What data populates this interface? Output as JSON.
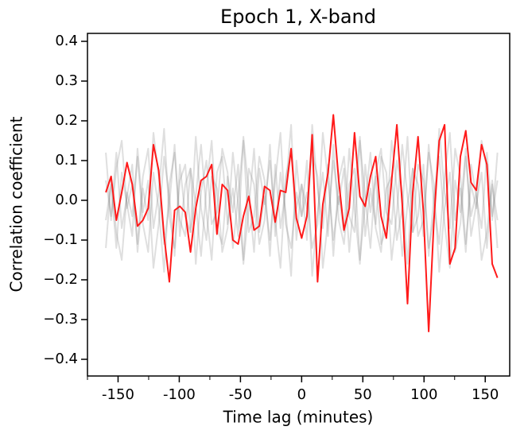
{
  "chart_data": {
    "type": "line",
    "title": "Epoch 1, X-band",
    "xlabel": "Time lag (minutes)",
    "ylabel": "Correlation coefficient",
    "x": [
      -160,
      -155.7,
      -151.4,
      -147.0,
      -142.7,
      -138.4,
      -134.1,
      -129.7,
      -125.4,
      -121.1,
      -116.8,
      -112.4,
      -108.1,
      -103.8,
      -99.5,
      -95.1,
      -90.8,
      -86.5,
      -82.2,
      -77.8,
      -73.5,
      -69.2,
      -64.9,
      -60.5,
      -56.2,
      -51.9,
      -47.6,
      -43.2,
      -38.9,
      -34.6,
      -30.3,
      -25.9,
      -21.6,
      -17.3,
      -13.0,
      -8.6,
      -4.3,
      0,
      4.3,
      8.6,
      13.0,
      17.3,
      21.6,
      25.9,
      30.3,
      34.6,
      38.9,
      43.2,
      47.6,
      51.9,
      56.2,
      60.5,
      64.9,
      69.2,
      73.5,
      77.8,
      82.2,
      86.5,
      90.8,
      95.1,
      99.5,
      103.8,
      108.1,
      112.4,
      116.8,
      121.1,
      125.4,
      129.7,
      134.1,
      138.4,
      142.7,
      147.0,
      151.4,
      155.7,
      160
    ],
    "series": [
      {
        "color": "#808080",
        "alpha": 0.25,
        "values": [
          0.12,
          -0.05,
          0.08,
          0.15,
          -0.02,
          0.04,
          -0.11,
          0.06,
          0.13,
          -0.07,
          0.02,
          0.18,
          -0.04,
          -0.12,
          0.05,
          0.09,
          -0.08,
          0.01,
          0.14,
          -0.03,
          -0.15,
          0.07,
          0.11,
          -0.06,
          0.03,
          -0.09,
          0.16,
          0.02,
          -0.13,
          0.08,
          -0.01,
          0.1,
          -0.05,
          -0.17,
          0.06,
          0.12,
          -0.02,
          0.04,
          -0.1,
          0.19,
          0.03,
          -0.07,
          0.09,
          -0.14,
          0.05,
          0.11,
          -0.04,
          -0.08,
          0.15,
          0.01,
          -0.12,
          0.07,
          0.13,
          -0.03,
          -0.06,
          0.1,
          0.02,
          -0.16,
          0.08,
          0.04,
          -0.09,
          0.14,
          -0.01,
          -0.11,
          0.06,
          0.17,
          -0.05,
          0.03,
          -0.13,
          0.09,
          0.01,
          -0.07,
          0.12,
          -0.04,
          0.05
        ]
      },
      {
        "color": "#808080",
        "alpha": 0.25,
        "values": [
          0.05,
          -0.04,
          0.12,
          -0.07,
          0.01,
          0.09,
          -0.13,
          0.03,
          -0.05,
          0.17,
          0.06,
          -0.11,
          -0.01,
          0.14,
          -0.09,
          0.04,
          0.08,
          -0.16,
          0.02,
          0.1,
          -0.06,
          -0.03,
          0.13,
          0.07,
          -0.12,
          0.01,
          0.15,
          -0.08,
          -0.04,
          0.11,
          0.05,
          -0.14,
          0.09,
          -0.07,
          0.03,
          0.19,
          -0.1,
          0.04,
          -0.02,
          0.12,
          0.06,
          -0.17,
          -0.05,
          0.1,
          -0.01,
          0.08,
          -0.13,
          0.02,
          0.16,
          -0.09,
          0.03,
          -0.06,
          0.11,
          0.07,
          -0.15,
          -0.03,
          0.14,
          0.01,
          -0.08,
          0.09,
          0.05,
          -0.12,
          -0.04,
          0.18,
          0.02,
          -0.07,
          0.13,
          0.06,
          -0.11,
          0.04,
          -0.02,
          0.15,
          0.08,
          -0.05,
          0.12
        ]
      },
      {
        "color": "#808080",
        "alpha": 0.25,
        "values": [
          -0.12,
          0.05,
          -0.08,
          -0.15,
          0.02,
          -0.04,
          0.11,
          -0.06,
          -0.13,
          0.07,
          -0.02,
          -0.18,
          0.04,
          0.12,
          -0.05,
          -0.09,
          0.08,
          -0.01,
          -0.14,
          0.03,
          0.15,
          -0.07,
          -0.11,
          0.06,
          -0.03,
          0.09,
          -0.16,
          -0.02,
          0.13,
          -0.08,
          0.01,
          -0.1,
          0.05,
          0.17,
          -0.06,
          -0.12,
          0.02,
          -0.04,
          0.1,
          -0.19,
          -0.03,
          0.07,
          -0.09,
          0.14,
          -0.05,
          -0.11,
          0.04,
          0.08,
          -0.15,
          -0.01,
          0.12,
          -0.07,
          -0.13,
          0.03,
          0.06,
          -0.1,
          -0.02,
          0.16,
          -0.08,
          -0.04,
          0.09,
          -0.14,
          0.01,
          0.11,
          -0.06,
          -0.17,
          0.05,
          -0.03,
          0.13,
          -0.09,
          -0.01,
          0.07,
          -0.12,
          0.04,
          -0.05
        ]
      },
      {
        "color": "#808080",
        "alpha": 0.25,
        "values": [
          -0.05,
          0.04,
          -0.12,
          0.07,
          -0.01,
          -0.09,
          0.13,
          -0.03,
          0.05,
          -0.17,
          -0.06,
          0.11,
          0.01,
          -0.14,
          0.09,
          -0.04,
          -0.08,
          0.16,
          -0.02,
          -0.1,
          0.06,
          0.03,
          -0.13,
          -0.07,
          0.12,
          -0.01,
          -0.15,
          0.08,
          0.04,
          -0.11,
          -0.05,
          0.14,
          -0.09,
          0.07,
          -0.03,
          -0.19,
          0.1,
          -0.04,
          0.02,
          -0.12,
          -0.06,
          0.17,
          0.05,
          -0.1,
          0.01,
          -0.08,
          0.13,
          -0.02,
          -0.16,
          0.09,
          -0.03,
          0.06,
          -0.11,
          -0.07,
          0.15,
          0.03,
          -0.14,
          -0.01,
          0.08,
          -0.09,
          -0.05,
          0.12,
          0.04,
          -0.18,
          -0.02,
          0.07,
          -0.13,
          -0.06,
          0.11,
          -0.04,
          0.02,
          -0.15,
          -0.08,
          0.05,
          -0.12
        ]
      },
      {
        "color": "#ff1a1a",
        "alpha": 1,
        "values": [
          0.02,
          0.06,
          -0.05,
          0.02,
          0.095,
          0.04,
          -0.065,
          -0.05,
          -0.02,
          0.14,
          0.075,
          -0.09,
          -0.205,
          -0.025,
          -0.015,
          -0.03,
          -0.13,
          -0.02,
          0.05,
          0.06,
          0.09,
          -0.085,
          0.04,
          0.025,
          -0.1,
          -0.11,
          -0.04,
          0.01,
          -0.075,
          -0.065,
          0.035,
          0.025,
          -0.055,
          0.025,
          0.02,
          0.13,
          -0.045,
          -0.095,
          -0.04,
          0.165,
          -0.205,
          -0.01,
          0.07,
          0.215,
          0.05,
          -0.075,
          -0.02,
          0.17,
          0.01,
          -0.015,
          0.06,
          0.11,
          -0.04,
          -0.095,
          0.05,
          0.19,
          -0.01,
          -0.26,
          0.02,
          0.16,
          -0.03,
          -0.33,
          -0.05,
          0.15,
          0.19,
          -0.16,
          -0.12,
          0.11,
          0.175,
          0.045,
          0.025,
          0.14,
          0.09,
          -0.16,
          -0.195
        ]
      }
    ],
    "xlim": [
      -175,
      170
    ],
    "ylim": [
      -0.442,
      0.42
    ],
    "xticks": [
      -150,
      -100,
      -50,
      0,
      50,
      100,
      150
    ],
    "xminorticks": [
      -175,
      -125,
      -75,
      -25,
      25,
      75,
      125
    ],
    "yticks": [
      {
        "value": -0.4,
        "label": "−0.4"
      },
      {
        "value": -0.3,
        "label": "−0.3"
      },
      {
        "value": -0.2,
        "label": "−0.2"
      },
      {
        "value": -0.1,
        "label": "−0.1"
      },
      {
        "value": 0,
        "label": "0.0"
      },
      0.1,
      0.2,
      0.3,
      0.4
    ],
    "grid": false
  }
}
